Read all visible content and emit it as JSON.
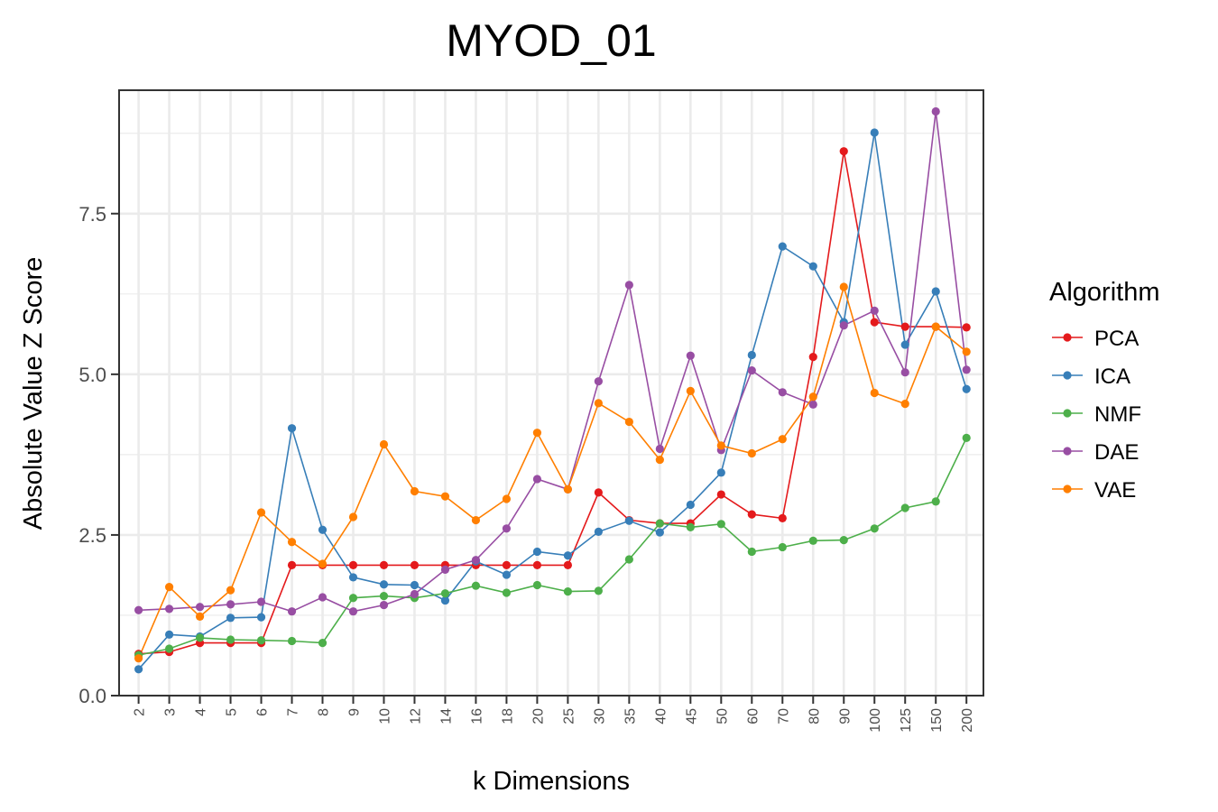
{
  "chart_data": {
    "type": "line",
    "title": "MYOD_01",
    "xlabel": "k Dimensions",
    "ylabel": "Absolute Value Z Score",
    "categories": [
      "2",
      "3",
      "4",
      "5",
      "6",
      "7",
      "8",
      "9",
      "10",
      "12",
      "14",
      "16",
      "18",
      "20",
      "25",
      "30",
      "35",
      "40",
      "45",
      "50",
      "60",
      "70",
      "80",
      "90",
      "100",
      "125",
      "150",
      "200"
    ],
    "yticks": [
      "0.0",
      "2.5",
      "5.0",
      "7.5"
    ],
    "ylim": [
      0,
      9.42
    ],
    "grid": true,
    "legend_position": "right",
    "legend_title": "Algorithm",
    "series": [
      {
        "name": "PCA",
        "color": "#e41a1c",
        "values": [
          0.65,
          0.68,
          0.82,
          0.82,
          0.82,
          2.03,
          2.03,
          2.03,
          2.03,
          2.03,
          2.03,
          2.03,
          2.03,
          2.03,
          2.03,
          3.16,
          2.73,
          2.68,
          2.68,
          3.13,
          2.82,
          2.76,
          5.27,
          8.47,
          5.81,
          5.74,
          5.74,
          5.73
        ]
      },
      {
        "name": "ICA",
        "color": "#377eb8",
        "values": [
          0.41,
          0.95,
          0.92,
          1.21,
          1.22,
          4.16,
          2.58,
          1.84,
          1.73,
          1.72,
          1.48,
          2.09,
          1.88,
          2.24,
          2.18,
          2.55,
          2.72,
          2.54,
          2.97,
          3.47,
          5.3,
          6.99,
          6.68,
          5.81,
          8.76,
          5.46,
          6.29,
          4.77
        ]
      },
      {
        "name": "NMF",
        "color": "#4daf4a",
        "values": [
          0.63,
          0.73,
          0.9,
          0.87,
          0.86,
          0.85,
          0.82,
          1.52,
          1.55,
          1.52,
          1.59,
          1.71,
          1.6,
          1.72,
          1.62,
          1.63,
          2.12,
          2.68,
          2.62,
          2.67,
          2.24,
          2.31,
          2.41,
          2.42,
          2.6,
          2.92,
          3.02,
          4.01
        ]
      },
      {
        "name": "DAE",
        "color": "#984ea3",
        "values": [
          1.33,
          1.35,
          1.38,
          1.42,
          1.46,
          1.31,
          1.53,
          1.31,
          1.41,
          1.58,
          1.96,
          2.11,
          2.6,
          3.37,
          3.21,
          4.89,
          6.39,
          3.84,
          5.29,
          3.82,
          5.06,
          4.72,
          4.53,
          5.76,
          5.99,
          5.03,
          9.09,
          5.07
        ]
      },
      {
        "name": "VAE",
        "color": "#ff7f00",
        "values": [
          0.58,
          1.69,
          1.23,
          1.64,
          2.85,
          2.39,
          2.05,
          2.78,
          3.91,
          3.18,
          3.1,
          2.73,
          3.06,
          4.09,
          3.21,
          4.55,
          4.26,
          3.67,
          4.74,
          3.89,
          3.77,
          3.99,
          4.65,
          6.36,
          4.71,
          4.54,
          5.74,
          5.35
        ]
      }
    ]
  }
}
